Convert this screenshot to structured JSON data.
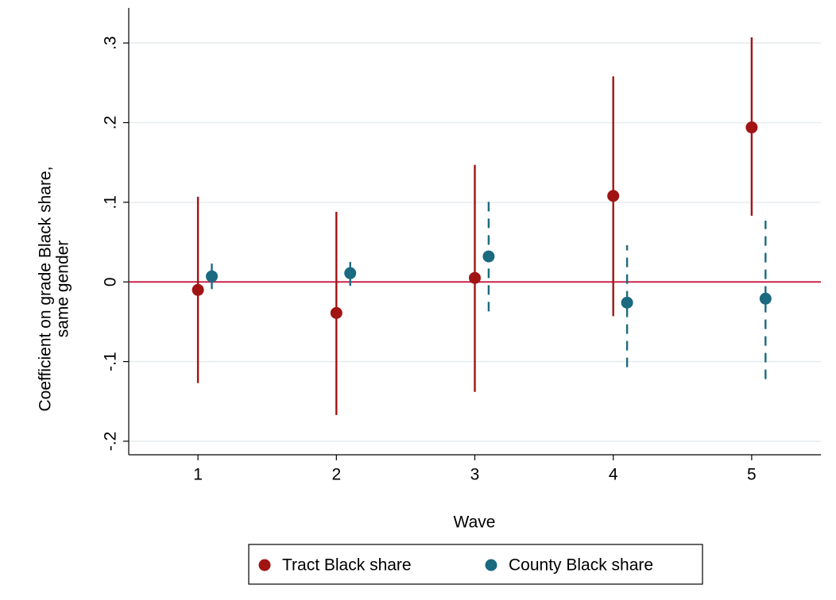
{
  "chart_data": {
    "type": "errorbar",
    "x_label": "Wave",
    "y_label": [
      "Coefficient on grade Black share,",
      "same gender"
    ],
    "xlim": [
      0.5,
      5.5
    ],
    "xticks": [
      1,
      2,
      3,
      4,
      5
    ],
    "ylim": [
      -0.217,
      0.344
    ],
    "yticks": [
      {
        "value": -0.2,
        "label": "-.2"
      },
      {
        "value": -0.1,
        "label": "-.1"
      },
      0,
      {
        "value": 0.1,
        "label": ".1"
      },
      {
        "value": 0.2,
        "label": ".2"
      },
      {
        "value": 0.3,
        "label": ".3"
      }
    ],
    "grid": true,
    "reference_line": {
      "value": 0,
      "color": "#c8254a"
    },
    "legend": "bottom",
    "series": [
      {
        "name": "Tract Black share",
        "color": "#a11414",
        "dashed": false,
        "x": [
          1,
          2,
          3,
          4,
          5
        ],
        "values": [
          -0.01,
          -0.039,
          0.005,
          0.108,
          0.194
        ],
        "lower": [
          -0.127,
          -0.167,
          -0.138,
          -0.043,
          0.083
        ],
        "upper": [
          0.107,
          0.088,
          0.147,
          0.258,
          0.307
        ]
      },
      {
        "name": "County Black share",
        "color": "#1b6a80",
        "dashed": true,
        "x": [
          1.1,
          2.1,
          3.1,
          4.1,
          5.1
        ],
        "values": [
          0.007,
          0.011,
          0.032,
          -0.026,
          -0.021
        ],
        "lower": [
          -0.009,
          -0.005,
          -0.037,
          -0.107,
          -0.122
        ],
        "upper": [
          0.023,
          0.025,
          0.102,
          0.046,
          0.077
        ]
      }
    ]
  }
}
